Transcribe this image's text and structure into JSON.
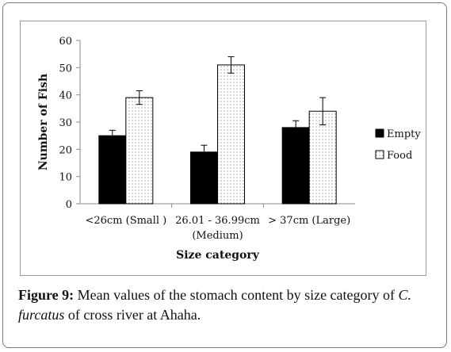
{
  "chart_data": {
    "type": "bar",
    "categories": [
      "<26cm (Small )",
      "26.01 - 36.99cm (Medium)",
      "> 37cm (Large)"
    ],
    "category_lines": [
      [
        "<26cm (Small )"
      ],
      [
        "26.01 - 36.99cm",
        "(Medium)"
      ],
      [
        "> 37cm (Large)"
      ]
    ],
    "series": [
      {
        "name": "Empty",
        "values": [
          25,
          19,
          28
        ],
        "errors": [
          2,
          2.5,
          2.5
        ],
        "color": "#000000",
        "pattern": "solid"
      },
      {
        "name": "Food",
        "values": [
          39,
          51,
          34
        ],
        "errors": [
          2.5,
          3,
          5
        ],
        "color": "#ffffff",
        "pattern": "dots"
      }
    ],
    "xlabel": "Size category",
    "ylabel": "Number of Fish",
    "ylim": [
      0,
      60
    ],
    "yticks": [
      "0",
      "10",
      "20",
      "30",
      "40",
      "50",
      "60"
    ],
    "grid": false,
    "legend_position": "right"
  },
  "caption": {
    "label": "Figure 9:",
    "text_before": " Mean values of the stomach content by size category of ",
    "species": "C. furcatus",
    "text_after": " of cross river at Ahaha."
  }
}
